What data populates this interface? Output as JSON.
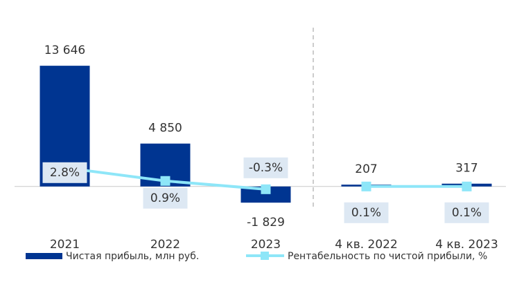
{
  "chart_data": {
    "type": "bar-line",
    "categories": [
      "2021",
      "2022",
      "2023",
      "4 кв. 2022",
      "4 кв. 2023"
    ],
    "group_sizes": [
      3,
      2
    ],
    "series": [
      {
        "name": "Чистая прибыль, млн руб.",
        "type": "bar",
        "color": "#003591",
        "values": [
          13646,
          4850,
          -1829,
          207,
          317
        ],
        "value_labels": [
          "13 646",
          "4 850",
          "-1 829",
          "207",
          "317"
        ]
      },
      {
        "name": "Рентабельность по чистой прибыли, %",
        "type": "line",
        "axis": "y2",
        "color": "#8ee6f8",
        "values": [
          2.8,
          0.9,
          -0.3,
          0.1,
          0.1
        ],
        "value_labels": [
          "2.8%",
          "0.9%",
          "-0.3%",
          "0.1%",
          "0.1%"
        ]
      }
    ],
    "ylim": [
      -4000,
      16000
    ],
    "y2lim": [
      -5,
      20.5
    ],
    "legend": "bottom"
  }
}
